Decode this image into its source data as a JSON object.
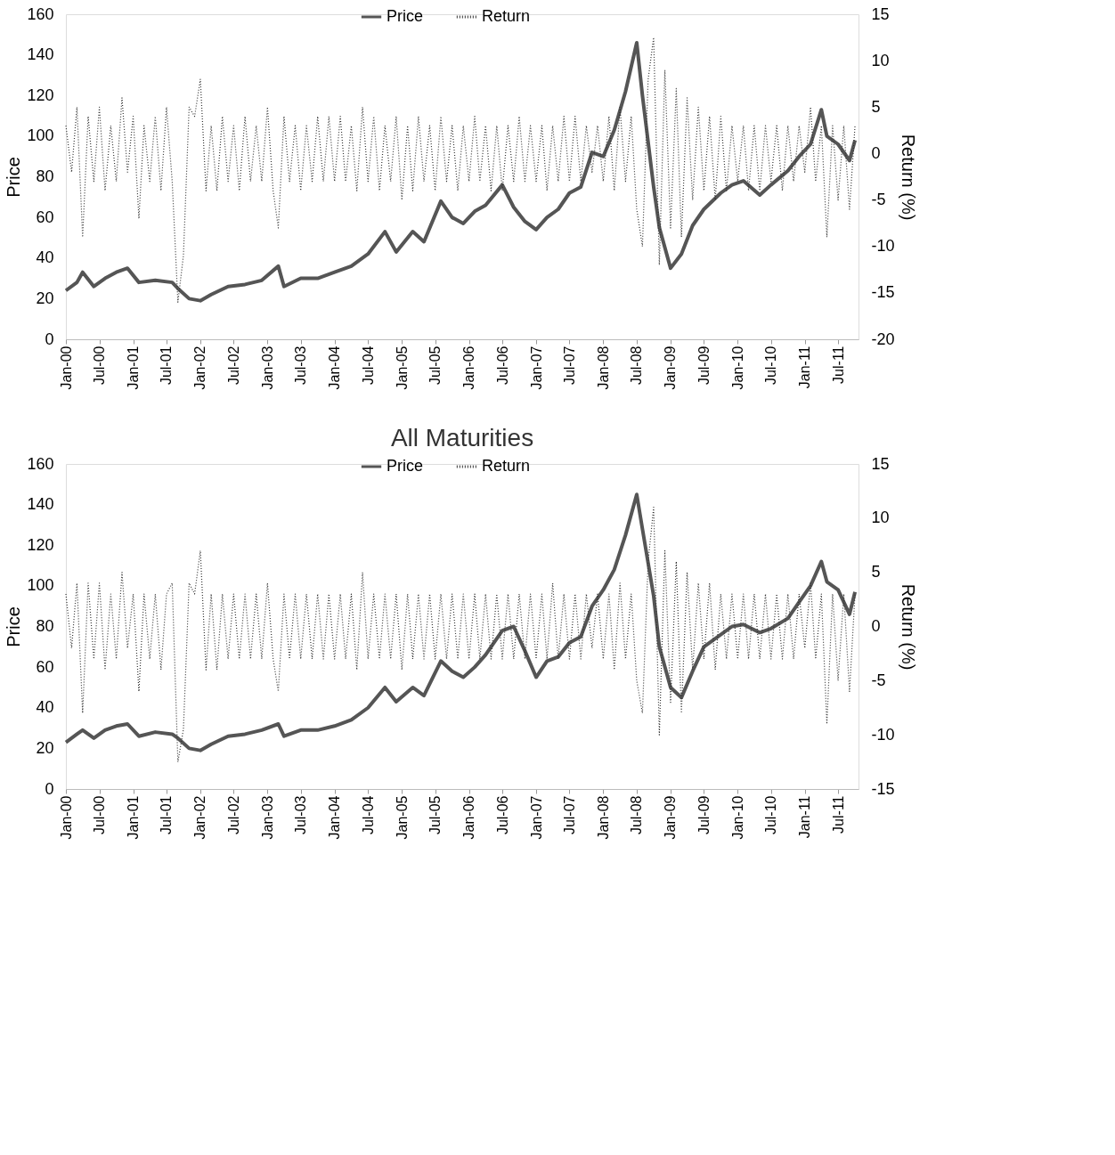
{
  "chart_data": [
    {
      "type": "line",
      "title": null,
      "ylabel": "Price",
      "y2label": "Return (%)",
      "legend": "top",
      "xlim": [
        "2000-01-01",
        "2011-10-20"
      ],
      "xticks": [
        {
          "value": "2000-01-01",
          "label": "Jan-00"
        },
        {
          "value": "2000-07-01",
          "label": "Jul-00"
        },
        {
          "value": "2001-01-01",
          "label": "Jan-01"
        },
        {
          "value": "2001-07-01",
          "label": "Jul-01"
        },
        {
          "value": "2002-01-01",
          "label": "Jan-02"
        },
        {
          "value": "2002-07-01",
          "label": "Jul-02"
        },
        {
          "value": "2003-01-01",
          "label": "Jan-03"
        },
        {
          "value": "2003-07-01",
          "label": "Jul-03"
        },
        {
          "value": "2004-01-01",
          "label": "Jan-04"
        },
        {
          "value": "2004-07-01",
          "label": "Jul-04"
        },
        {
          "value": "2005-01-01",
          "label": "Jan-05"
        },
        {
          "value": "2005-07-01",
          "label": "Jul-05"
        },
        {
          "value": "2006-01-01",
          "label": "Jan-06"
        },
        {
          "value": "2006-07-01",
          "label": "Jul-06"
        },
        {
          "value": "2007-01-01",
          "label": "Jan-07"
        },
        {
          "value": "2007-07-01",
          "label": "Jul-07"
        },
        {
          "value": "2008-01-01",
          "label": "Jan-08"
        },
        {
          "value": "2008-07-01",
          "label": "Jul-08"
        },
        {
          "value": "2009-01-01",
          "label": "Jan-09"
        },
        {
          "value": "2009-07-01",
          "label": "Jul-09"
        },
        {
          "value": "2010-01-01",
          "label": "Jan-10"
        },
        {
          "value": "2010-07-01",
          "label": "Jul-10"
        },
        {
          "value": "2011-01-01",
          "label": "Jan-11"
        },
        {
          "value": "2011-07-01",
          "label": "Jul-11"
        }
      ],
      "ylim": [
        0,
        160
      ],
      "yticks": [
        0,
        20,
        40,
        60,
        80,
        100,
        120,
        140,
        160
      ],
      "y2lim": [
        -20,
        15
      ],
      "y2ticks": [
        -20,
        -15,
        -10,
        -5,
        0,
        5,
        10,
        15
      ],
      "x": [
        "2000-01-01",
        "2000-02-01",
        "2000-03-01",
        "2000-04-01",
        "2000-05-01",
        "2000-06-01",
        "2000-07-01",
        "2000-08-01",
        "2000-09-01",
        "2000-10-01",
        "2000-11-01",
        "2000-12-01",
        "2001-01-01",
        "2001-02-01",
        "2001-03-01",
        "2001-04-01",
        "2001-05-01",
        "2001-06-01",
        "2001-07-01",
        "2001-08-01",
        "2001-09-01",
        "2001-10-01",
        "2001-11-01",
        "2001-12-01",
        "2002-01-01",
        "2002-02-01",
        "2002-03-01",
        "2002-04-01",
        "2002-05-01",
        "2002-06-01",
        "2002-07-01",
        "2002-08-01",
        "2002-09-01",
        "2002-10-01",
        "2002-11-01",
        "2002-12-01",
        "2003-01-01",
        "2003-02-01",
        "2003-03-01",
        "2003-04-01",
        "2003-05-01",
        "2003-06-01",
        "2003-07-01",
        "2003-08-01",
        "2003-09-01",
        "2003-10-01",
        "2003-11-01",
        "2003-12-01",
        "2004-01-01",
        "2004-02-01",
        "2004-03-01",
        "2004-04-01",
        "2004-05-01",
        "2004-06-01",
        "2004-07-01",
        "2004-08-01",
        "2004-09-01",
        "2004-10-01",
        "2004-11-01",
        "2004-12-01",
        "2005-01-01",
        "2005-02-01",
        "2005-03-01",
        "2005-04-01",
        "2005-05-01",
        "2005-06-01",
        "2005-07-01",
        "2005-08-01",
        "2005-09-01",
        "2005-10-01",
        "2005-11-01",
        "2005-12-01",
        "2006-01-01",
        "2006-02-01",
        "2006-03-01",
        "2006-04-01",
        "2006-05-01",
        "2006-06-01",
        "2006-07-01",
        "2006-08-01",
        "2006-09-01",
        "2006-10-01",
        "2006-11-01",
        "2006-12-01",
        "2007-01-01",
        "2007-02-01",
        "2007-03-01",
        "2007-04-01",
        "2007-05-01",
        "2007-06-01",
        "2007-07-01",
        "2007-08-01",
        "2007-09-01",
        "2007-10-01",
        "2007-11-01",
        "2007-12-01",
        "2008-01-01",
        "2008-02-01",
        "2008-03-01",
        "2008-04-01",
        "2008-05-01",
        "2008-06-01",
        "2008-07-01",
        "2008-08-01",
        "2008-09-01",
        "2008-10-01",
        "2008-11-01",
        "2008-12-01",
        "2009-01-01",
        "2009-02-01",
        "2009-03-01",
        "2009-04-01",
        "2009-05-01",
        "2009-06-01",
        "2009-07-01",
        "2009-08-01",
        "2009-09-01",
        "2009-10-01",
        "2009-11-01",
        "2009-12-01",
        "2010-01-01",
        "2010-02-01",
        "2010-03-01",
        "2010-04-01",
        "2010-05-01",
        "2010-06-01",
        "2010-07-01",
        "2010-08-01",
        "2010-09-01",
        "2010-10-01",
        "2010-11-01",
        "2010-12-01",
        "2011-01-01",
        "2011-02-01",
        "2011-03-01",
        "2011-04-01",
        "2011-05-01",
        "2011-06-01",
        "2011-07-01",
        "2011-08-01",
        "2011-09-01",
        "2011-10-01"
      ],
      "series": [
        {
          "name": "Price",
          "color": "#555555",
          "line_style": "solid",
          "axis": "y",
          "x": [
            "2000-01-01",
            "2000-03-01",
            "2000-04-01",
            "2000-06-01",
            "2000-08-01",
            "2000-10-01",
            "2000-12-01",
            "2001-02-01",
            "2001-05-01",
            "2001-08-01",
            "2001-09-01",
            "2001-11-01",
            "2002-01-01",
            "2002-03-01",
            "2002-06-01",
            "2002-09-01",
            "2002-12-01",
            "2003-03-01",
            "2003-04-01",
            "2003-07-01",
            "2003-10-01",
            "2004-01-01",
            "2004-04-01",
            "2004-07-01",
            "2004-10-01",
            "2004-12-01",
            "2005-03-01",
            "2005-05-01",
            "2005-08-01",
            "2005-10-01",
            "2005-12-01",
            "2006-02-01",
            "2006-04-01",
            "2006-07-01",
            "2006-09-01",
            "2006-11-01",
            "2007-01-01",
            "2007-03-01",
            "2007-05-01",
            "2007-07-01",
            "2007-09-01",
            "2007-11-01",
            "2008-01-01",
            "2008-03-01",
            "2008-05-01",
            "2008-07-01",
            "2008-08-01",
            "2008-10-01",
            "2008-11-01",
            "2009-01-01",
            "2009-03-01",
            "2009-05-01",
            "2009-07-01",
            "2009-10-01",
            "2009-12-01",
            "2010-02-01",
            "2010-05-01",
            "2010-07-01",
            "2010-10-01",
            "2010-12-01",
            "2011-02-01",
            "2011-04-01",
            "2011-05-01",
            "2011-07-01",
            "2011-09-01",
            "2011-10-01"
          ],
          "values": [
            24,
            28,
            33,
            26,
            30,
            33,
            35,
            28,
            29,
            28,
            25,
            20,
            19,
            22,
            26,
            27,
            29,
            36,
            26,
            30,
            30,
            33,
            36,
            42,
            53,
            43,
            53,
            48,
            68,
            60,
            57,
            63,
            66,
            76,
            65,
            58,
            54,
            60,
            64,
            72,
            75,
            92,
            90,
            103,
            122,
            146,
            120,
            75,
            55,
            35,
            42,
            56,
            64,
            72,
            76,
            78,
            71,
            76,
            83,
            90,
            96,
            113,
            100,
            96,
            88,
            98
          ]
        },
        {
          "name": "Return",
          "color": "#333333",
          "line_style": "dotted",
          "axis": "y2",
          "values": [
            3,
            -2,
            5,
            -9,
            4,
            -3,
            5,
            -4,
            3,
            -3,
            6,
            -2,
            4,
            -7,
            3,
            -3,
            4,
            -4,
            5,
            -3,
            -16,
            -11,
            5,
            4,
            8,
            -4,
            3,
            -4,
            4,
            -3,
            3,
            -4,
            4,
            -3,
            3,
            -3,
            5,
            -4,
            -8,
            4,
            -3,
            3,
            -4,
            3,
            -3,
            4,
            -3,
            4,
            -3,
            4,
            -3,
            3,
            -4,
            5,
            -3,
            4,
            -4,
            3,
            -3,
            4,
            -5,
            3,
            -4,
            4,
            -3,
            3,
            -4,
            4,
            -3,
            3,
            -4,
            3,
            -3,
            4,
            -3,
            3,
            -4,
            3,
            -4,
            3,
            -3,
            4,
            -3,
            3,
            -3,
            3,
            -4,
            3,
            -3,
            4,
            -3,
            4,
            -3,
            3,
            -2,
            3,
            -3,
            4,
            -4,
            5,
            -3,
            4,
            -6,
            -10,
            8,
            12.5,
            -12,
            9,
            -8,
            7,
            -9,
            6,
            -5,
            5,
            -4,
            4,
            -5,
            4,
            -4,
            3,
            -3,
            3,
            -4,
            3,
            -4,
            3,
            -3,
            3,
            -4,
            3,
            -3,
            3,
            -2,
            5,
            -3,
            3,
            -9,
            3,
            -5,
            3,
            -6,
            3
          ]
        }
      ]
    },
    {
      "type": "line",
      "title": "All Maturities",
      "ylabel": "Price",
      "y2label": "Return (%)",
      "legend": "top",
      "xlim": [
        "2000-01-01",
        "2011-10-20"
      ],
      "xticks": [
        {
          "value": "2000-01-01",
          "label": "Jan-00"
        },
        {
          "value": "2000-07-01",
          "label": "Jul-00"
        },
        {
          "value": "2001-01-01",
          "label": "Jan-01"
        },
        {
          "value": "2001-07-01",
          "label": "Jul-01"
        },
        {
          "value": "2002-01-01",
          "label": "Jan-02"
        },
        {
          "value": "2002-07-01",
          "label": "Jul-02"
        },
        {
          "value": "2003-01-01",
          "label": "Jan-03"
        },
        {
          "value": "2003-07-01",
          "label": "Jul-03"
        },
        {
          "value": "2004-01-01",
          "label": "Jan-04"
        },
        {
          "value": "2004-07-01",
          "label": "Jul-04"
        },
        {
          "value": "2005-01-01",
          "label": "Jan-05"
        },
        {
          "value": "2005-07-01",
          "label": "Jul-05"
        },
        {
          "value": "2006-01-01",
          "label": "Jan-06"
        },
        {
          "value": "2006-07-01",
          "label": "Jul-06"
        },
        {
          "value": "2007-01-01",
          "label": "Jan-07"
        },
        {
          "value": "2007-07-01",
          "label": "Jul-07"
        },
        {
          "value": "2008-01-01",
          "label": "Jan-08"
        },
        {
          "value": "2008-07-01",
          "label": "Jul-08"
        },
        {
          "value": "2009-01-01",
          "label": "Jan-09"
        },
        {
          "value": "2009-07-01",
          "label": "Jul-09"
        },
        {
          "value": "2010-01-01",
          "label": "Jan-10"
        },
        {
          "value": "2010-07-01",
          "label": "Jul-10"
        },
        {
          "value": "2011-01-01",
          "label": "Jan-11"
        },
        {
          "value": "2011-07-01",
          "label": "Jul-11"
        }
      ],
      "ylim": [
        0,
        160
      ],
      "yticks": [
        0,
        20,
        40,
        60,
        80,
        100,
        120,
        140,
        160
      ],
      "y2lim": [
        -15,
        15
      ],
      "y2ticks": [
        -15,
        -10,
        -5,
        0,
        5,
        10,
        15
      ],
      "x": [
        "2000-01-01",
        "2000-02-01",
        "2000-03-01",
        "2000-04-01",
        "2000-05-01",
        "2000-06-01",
        "2000-07-01",
        "2000-08-01",
        "2000-09-01",
        "2000-10-01",
        "2000-11-01",
        "2000-12-01",
        "2001-01-01",
        "2001-02-01",
        "2001-03-01",
        "2001-04-01",
        "2001-05-01",
        "2001-06-01",
        "2001-07-01",
        "2001-08-01",
        "2001-09-01",
        "2001-10-01",
        "2001-11-01",
        "2001-12-01",
        "2002-01-01",
        "2002-02-01",
        "2002-03-01",
        "2002-04-01",
        "2002-05-01",
        "2002-06-01",
        "2002-07-01",
        "2002-08-01",
        "2002-09-01",
        "2002-10-01",
        "2002-11-01",
        "2002-12-01",
        "2003-01-01",
        "2003-02-01",
        "2003-03-01",
        "2003-04-01",
        "2003-05-01",
        "2003-06-01",
        "2003-07-01",
        "2003-08-01",
        "2003-09-01",
        "2003-10-01",
        "2003-11-01",
        "2003-12-01",
        "2004-01-01",
        "2004-02-01",
        "2004-03-01",
        "2004-04-01",
        "2004-05-01",
        "2004-06-01",
        "2004-07-01",
        "2004-08-01",
        "2004-09-01",
        "2004-10-01",
        "2004-11-01",
        "2004-12-01",
        "2005-01-01",
        "2005-02-01",
        "2005-03-01",
        "2005-04-01",
        "2005-05-01",
        "2005-06-01",
        "2005-07-01",
        "2005-08-01",
        "2005-09-01",
        "2005-10-01",
        "2005-11-01",
        "2005-12-01",
        "2006-01-01",
        "2006-02-01",
        "2006-03-01",
        "2006-04-01",
        "2006-05-01",
        "2006-06-01",
        "2006-07-01",
        "2006-08-01",
        "2006-09-01",
        "2006-10-01",
        "2006-11-01",
        "2006-12-01",
        "2007-01-01",
        "2007-02-01",
        "2007-03-01",
        "2007-04-01",
        "2007-05-01",
        "2007-06-01",
        "2007-07-01",
        "2007-08-01",
        "2007-09-01",
        "2007-10-01",
        "2007-11-01",
        "2007-12-01",
        "2008-01-01",
        "2008-02-01",
        "2008-03-01",
        "2008-04-01",
        "2008-05-01",
        "2008-06-01",
        "2008-07-01",
        "2008-08-01",
        "2008-09-01",
        "2008-10-01",
        "2008-11-01",
        "2008-12-01",
        "2009-01-01",
        "2009-02-01",
        "2009-03-01",
        "2009-04-01",
        "2009-05-01",
        "2009-06-01",
        "2009-07-01",
        "2009-08-01",
        "2009-09-01",
        "2009-10-01",
        "2009-11-01",
        "2009-12-01",
        "2010-01-01",
        "2010-02-01",
        "2010-03-01",
        "2010-04-01",
        "2010-05-01",
        "2010-06-01",
        "2010-07-01",
        "2010-08-01",
        "2010-09-01",
        "2010-10-01",
        "2010-11-01",
        "2010-12-01",
        "2011-01-01",
        "2011-02-01",
        "2011-03-01",
        "2011-04-01",
        "2011-05-01",
        "2011-06-01",
        "2011-07-01",
        "2011-08-01",
        "2011-09-01",
        "2011-10-01"
      ],
      "series": [
        {
          "name": "Price",
          "color": "#555555",
          "line_style": "solid",
          "axis": "y",
          "x": [
            "2000-01-01",
            "2000-03-01",
            "2000-04-01",
            "2000-06-01",
            "2000-08-01",
            "2000-10-01",
            "2000-12-01",
            "2001-02-01",
            "2001-05-01",
            "2001-08-01",
            "2001-09-01",
            "2001-11-01",
            "2002-01-01",
            "2002-03-01",
            "2002-06-01",
            "2002-09-01",
            "2002-12-01",
            "2003-03-01",
            "2003-04-01",
            "2003-07-01",
            "2003-10-01",
            "2004-01-01",
            "2004-04-01",
            "2004-07-01",
            "2004-10-01",
            "2004-12-01",
            "2005-03-01",
            "2005-05-01",
            "2005-08-01",
            "2005-10-01",
            "2005-12-01",
            "2006-02-01",
            "2006-04-01",
            "2006-07-01",
            "2006-09-01",
            "2006-11-01",
            "2007-01-01",
            "2007-03-01",
            "2007-05-01",
            "2007-07-01",
            "2007-09-01",
            "2007-11-01",
            "2008-01-01",
            "2008-03-01",
            "2008-05-01",
            "2008-07-01",
            "2008-08-01",
            "2008-10-01",
            "2008-11-01",
            "2009-01-01",
            "2009-03-01",
            "2009-05-01",
            "2009-07-01",
            "2009-10-01",
            "2009-12-01",
            "2010-02-01",
            "2010-05-01",
            "2010-07-01",
            "2010-10-01",
            "2010-12-01",
            "2011-02-01",
            "2011-04-01",
            "2011-05-01",
            "2011-07-01",
            "2011-09-01",
            "2011-10-01"
          ],
          "values": [
            23,
            27,
            29,
            25,
            29,
            31,
            32,
            26,
            28,
            27,
            25,
            20,
            19,
            22,
            26,
            27,
            29,
            32,
            26,
            29,
            29,
            31,
            34,
            40,
            50,
            43,
            50,
            46,
            63,
            58,
            55,
            60,
            66,
            78,
            80,
            68,
            55,
            63,
            65,
            72,
            75,
            90,
            98,
            108,
            125,
            145,
            128,
            95,
            70,
            50,
            45,
            58,
            70,
            76,
            80,
            81,
            77,
            79,
            84,
            92,
            100,
            112,
            102,
            98,
            86,
            97
          ]
        },
        {
          "name": "Return",
          "color": "#333333",
          "line_style": "dotted",
          "axis": "y2",
          "values": [
            3,
            -2,
            4,
            -8,
            4,
            -3,
            4,
            -4,
            3,
            -3,
            5,
            -2,
            3,
            -6,
            3,
            -3,
            3,
            -4,
            3,
            4,
            -12.5,
            -9.5,
            4,
            3,
            7,
            -4,
            3,
            -4,
            3,
            -3,
            3,
            -3,
            3,
            -3,
            3,
            -3,
            4,
            -3,
            -6,
            3,
            -3,
            3,
            -3,
            3,
            -3,
            3,
            -3,
            3,
            -3,
            3,
            -3,
            3,
            -4,
            5,
            -3,
            3,
            -3,
            3,
            -3,
            3,
            -4,
            3,
            -3,
            3,
            -3,
            3,
            -3,
            3,
            -3,
            3,
            -3,
            3,
            -3,
            3,
            -3,
            3,
            -3,
            3,
            -3,
            3,
            -3,
            3,
            -3,
            3,
            -3,
            3,
            -3,
            4,
            -3,
            3,
            -3,
            3,
            -3,
            3,
            -2,
            3,
            -3,
            3,
            -4,
            4,
            -3,
            3,
            -5,
            -8,
            6,
            11,
            -10,
            7,
            -7,
            6,
            -8,
            5,
            -4,
            4,
            -3,
            4,
            -4,
            3,
            -3,
            3,
            -3,
            3,
            -3,
            3,
            -3,
            3,
            -3,
            3,
            -3,
            3,
            -3,
            3,
            -2,
            4,
            -3,
            3,
            -9,
            3,
            -5,
            3,
            -6,
            3
          ]
        }
      ]
    }
  ]
}
